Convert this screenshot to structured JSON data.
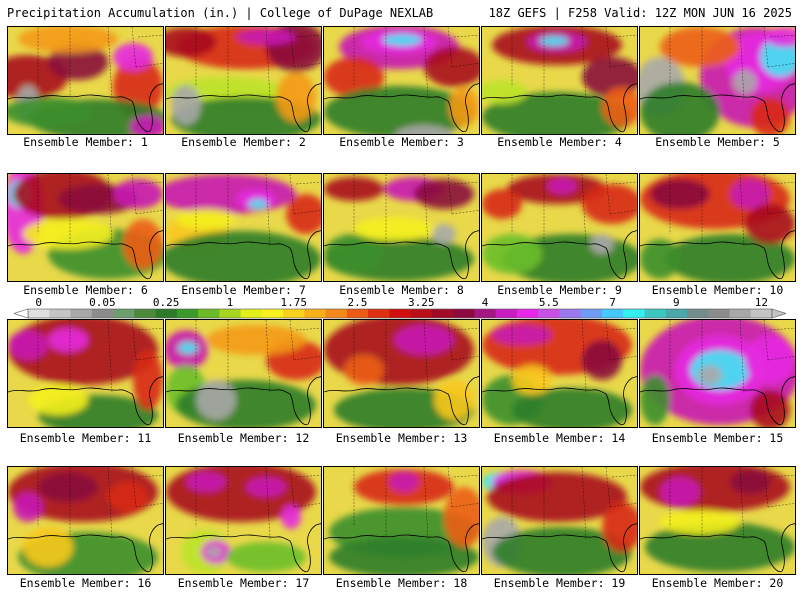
{
  "header": {
    "left": "Precipitation Accumulation (in.) | College of DuPage NEXLAB",
    "right": "18Z GEFS | F258 Valid: 12Z MON JUN 16 2025"
  },
  "members": [
    {
      "label": "Ensemble Member: 1"
    },
    {
      "label": "Ensemble Member: 2"
    },
    {
      "label": "Ensemble Member: 3"
    },
    {
      "label": "Ensemble Member: 4"
    },
    {
      "label": "Ensemble Member: 5"
    },
    {
      "label": "Ensemble Member: 6"
    },
    {
      "label": "Ensemble Member: 7"
    },
    {
      "label": "Ensemble Member: 8"
    },
    {
      "label": "Ensemble Member: 9"
    },
    {
      "label": "Ensemble Member: 10"
    },
    {
      "label": "Ensemble Member: 11"
    },
    {
      "label": "Ensemble Member: 12"
    },
    {
      "label": "Ensemble Member: 13"
    },
    {
      "label": "Ensemble Member: 14"
    },
    {
      "label": "Ensemble Member: 15"
    },
    {
      "label": "Ensemble Member: 16"
    },
    {
      "label": "Ensemble Member: 17"
    },
    {
      "label": "Ensemble Member: 18"
    },
    {
      "label": "Ensemble Member: 19"
    },
    {
      "label": "Ensemble Member: 20"
    }
  ],
  "colorbar": {
    "tick_labels": [
      "0",
      "0.05",
      "0.25",
      "1",
      "1.75",
      "2.5",
      "3.25",
      "4",
      "5.5",
      "7",
      "9",
      "12"
    ],
    "colors": [
      "#e0e0e0",
      "#c4c4c4",
      "#a8a8a8",
      "#8c8c8c",
      "#6e9e6e",
      "#4e8a3c",
      "#2e7a2a",
      "#3a9a2a",
      "#6cba28",
      "#a8d422",
      "#e4ee1a",
      "#f8f020",
      "#f8d21e",
      "#f8b01a",
      "#f48818",
      "#ec5a16",
      "#e03012",
      "#d01010",
      "#b80e18",
      "#a00c28",
      "#8c0a40",
      "#a21880",
      "#c81ec0",
      "#e628e6",
      "#c850e6",
      "#9a78ee",
      "#6e9cf4",
      "#46c8fa",
      "#34eef0",
      "#3cc8c0",
      "#4aa8a8",
      "#748c8c",
      "#8c8c8c",
      "#a8a8a8",
      "#c4c4c4"
    ],
    "tick_slots": [
      0,
      3,
      6,
      9,
      12,
      15,
      18,
      21,
      24,
      27,
      30,
      34
    ]
  },
  "map": {
    "palette": [
      "#2e7d2a",
      "#3c8f2c",
      "#6cbf2a",
      "#bde32a",
      "#f4f01e",
      "#f8c81c",
      "#f49a18",
      "#ec5e16",
      "#d82a14",
      "#a80c1c",
      "#8a0a3c",
      "#c81ab4",
      "#e62ae0",
      "#40e6f2",
      "#a8a8a8"
    ],
    "background_color": "#e8d84a",
    "outline_color": "#000000",
    "panels": [
      {
        "member": 1,
        "blobs": [
          [
            20,
            50,
            40,
            22,
            9
          ],
          [
            70,
            35,
            30,
            18,
            10
          ],
          [
            60,
            12,
            50,
            14,
            6
          ],
          [
            130,
            60,
            25,
            30,
            8
          ],
          [
            20,
            78,
            12,
            20,
            14
          ],
          [
            90,
            92,
            70,
            20,
            0
          ],
          [
            40,
            85,
            45,
            15,
            1
          ],
          [
            140,
            100,
            18,
            12,
            11
          ],
          [
            125,
            30,
            20,
            14,
            12
          ]
        ]
      },
      {
        "member": 2,
        "blobs": [
          [
            80,
            20,
            70,
            22,
            8
          ],
          [
            20,
            15,
            30,
            15,
            9
          ],
          [
            130,
            20,
            30,
            25,
            10
          ],
          [
            60,
            65,
            60,
            15,
            3
          ],
          [
            80,
            92,
            75,
            22,
            0
          ],
          [
            20,
            78,
            15,
            20,
            14
          ],
          [
            130,
            70,
            20,
            25,
            6
          ],
          [
            100,
            10,
            30,
            8,
            11
          ]
        ]
      },
      {
        "member": 3,
        "blobs": [
          [
            75,
            20,
            60,
            22,
            11
          ],
          [
            75,
            15,
            38,
            12,
            12
          ],
          [
            78,
            13,
            20,
            6,
            13
          ],
          [
            30,
            50,
            30,
            20,
            8
          ],
          [
            130,
            40,
            30,
            20,
            9
          ],
          [
            75,
            85,
            75,
            26,
            0
          ],
          [
            100,
            110,
            30,
            12,
            14
          ],
          [
            140,
            80,
            15,
            20,
            6
          ]
        ]
      },
      {
        "member": 4,
        "blobs": [
          [
            75,
            18,
            65,
            20,
            9
          ],
          [
            75,
            15,
            30,
            10,
            11
          ],
          [
            72,
            14,
            15,
            5,
            13
          ],
          [
            130,
            50,
            30,
            20,
            10
          ],
          [
            75,
            90,
            75,
            25,
            0
          ],
          [
            20,
            65,
            25,
            12,
            3
          ],
          [
            140,
            80,
            20,
            20,
            7
          ]
        ]
      },
      {
        "member": 5,
        "blobs": [
          [
            115,
            50,
            55,
            50,
            11
          ],
          [
            120,
            35,
            35,
            30,
            12
          ],
          [
            105,
            55,
            12,
            12,
            14
          ],
          [
            20,
            60,
            25,
            30,
            14
          ],
          [
            40,
            85,
            40,
            30,
            0
          ],
          [
            60,
            20,
            40,
            20,
            7
          ],
          [
            140,
            30,
            20,
            20,
            13
          ],
          [
            130,
            90,
            20,
            20,
            8
          ],
          [
            145,
            10,
            20,
            10,
            12
          ]
        ]
      },
      {
        "member": 6,
        "blobs": [
          [
            15,
            35,
            20,
            45,
            12
          ],
          [
            12,
            20,
            12,
            14,
            13
          ],
          [
            55,
            20,
            50,
            25,
            9
          ],
          [
            90,
            25,
            40,
            15,
            10
          ],
          [
            100,
            80,
            60,
            25,
            1
          ],
          [
            60,
            60,
            45,
            15,
            4
          ],
          [
            135,
            70,
            20,
            25,
            7
          ],
          [
            130,
            20,
            25,
            15,
            11
          ]
        ]
      },
      {
        "member": 7,
        "blobs": [
          [
            60,
            20,
            70,
            20,
            11
          ],
          [
            90,
            25,
            20,
            10,
            12
          ],
          [
            92,
            30,
            10,
            5,
            13
          ],
          [
            30,
            60,
            30,
            20,
            5
          ],
          [
            75,
            85,
            80,
            28,
            0
          ],
          [
            140,
            40,
            20,
            20,
            8
          ],
          [
            40,
            45,
            30,
            10,
            4
          ]
        ]
      },
      {
        "member": 8,
        "blobs": [
          [
            90,
            15,
            30,
            12,
            11
          ],
          [
            30,
            15,
            30,
            12,
            9
          ],
          [
            120,
            20,
            30,
            15,
            10
          ],
          [
            75,
            85,
            75,
            22,
            0
          ],
          [
            120,
            60,
            12,
            10,
            14
          ],
          [
            30,
            80,
            30,
            20,
            1
          ],
          [
            70,
            55,
            40,
            12,
            4
          ]
        ]
      },
      {
        "member": 9,
        "blobs": [
          [
            75,
            15,
            50,
            15,
            9
          ],
          [
            80,
            12,
            15,
            8,
            11
          ],
          [
            20,
            30,
            20,
            15,
            8
          ],
          [
            130,
            30,
            30,
            20,
            8
          ],
          [
            90,
            85,
            70,
            25,
            0
          ],
          [
            30,
            80,
            30,
            20,
            2
          ],
          [
            120,
            70,
            12,
            10,
            14
          ]
        ]
      },
      {
        "member": 10,
        "blobs": [
          [
            75,
            25,
            75,
            30,
            8
          ],
          [
            40,
            20,
            30,
            15,
            10
          ],
          [
            110,
            20,
            20,
            15,
            11
          ],
          [
            90,
            85,
            65,
            25,
            0
          ],
          [
            20,
            85,
            20,
            20,
            1
          ],
          [
            130,
            50,
            25,
            20,
            9
          ]
        ]
      },
      {
        "member": 11,
        "blobs": [
          [
            75,
            30,
            75,
            35,
            9
          ],
          [
            20,
            25,
            20,
            15,
            11
          ],
          [
            60,
            20,
            20,
            12,
            12
          ],
          [
            90,
            95,
            60,
            20,
            0
          ],
          [
            50,
            80,
            30,
            15,
            4
          ],
          [
            140,
            60,
            15,
            30,
            8
          ]
        ]
      },
      {
        "member": 12,
        "blobs": [
          [
            20,
            30,
            22,
            20,
            11
          ],
          [
            22,
            28,
            10,
            6,
            13
          ],
          [
            20,
            70,
            20,
            25,
            2
          ],
          [
            80,
            85,
            70,
            25,
            0
          ],
          [
            50,
            80,
            20,
            20,
            14
          ],
          [
            130,
            40,
            30,
            20,
            8
          ],
          [
            90,
            20,
            50,
            15,
            6
          ]
        ]
      },
      {
        "member": 13,
        "blobs": [
          [
            75,
            30,
            75,
            35,
            9
          ],
          [
            100,
            20,
            30,
            15,
            11
          ],
          [
            40,
            50,
            20,
            15,
            7
          ],
          [
            80,
            90,
            70,
            22,
            0
          ],
          [
            130,
            80,
            20,
            20,
            5
          ]
        ]
      },
      {
        "member": 14,
        "blobs": [
          [
            75,
            25,
            75,
            30,
            8
          ],
          [
            40,
            15,
            30,
            10,
            11
          ],
          [
            120,
            40,
            20,
            20,
            10
          ],
          [
            30,
            80,
            30,
            25,
            1
          ],
          [
            90,
            90,
            60,
            22,
            0
          ],
          [
            50,
            60,
            20,
            15,
            5
          ]
        ]
      },
      {
        "member": 15,
        "blobs": [
          [
            80,
            50,
            80,
            55,
            11
          ],
          [
            80,
            50,
            45,
            35,
            12
          ],
          [
            80,
            50,
            30,
            20,
            13
          ],
          [
            70,
            55,
            12,
            10,
            14
          ],
          [
            130,
            40,
            25,
            25,
            12
          ],
          [
            15,
            80,
            15,
            25,
            1
          ],
          [
            130,
            90,
            20,
            20,
            9
          ]
        ]
      },
      {
        "member": 16,
        "blobs": [
          [
            75,
            25,
            75,
            30,
            9
          ],
          [
            60,
            20,
            30,
            15,
            10
          ],
          [
            20,
            40,
            15,
            15,
            11
          ],
          [
            120,
            30,
            20,
            15,
            8
          ],
          [
            80,
            90,
            70,
            25,
            1
          ],
          [
            40,
            80,
            25,
            20,
            5
          ]
        ]
      },
      {
        "member": 17,
        "blobs": [
          [
            75,
            25,
            75,
            30,
            9
          ],
          [
            40,
            15,
            20,
            10,
            11
          ],
          [
            100,
            20,
            20,
            10,
            11
          ],
          [
            40,
            85,
            25,
            22,
            3
          ],
          [
            50,
            85,
            15,
            12,
            12
          ],
          [
            48,
            85,
            8,
            6,
            14
          ],
          [
            125,
            50,
            10,
            12,
            12
          ],
          [
            100,
            90,
            40,
            15,
            2
          ]
        ]
      },
      {
        "member": 18,
        "blobs": [
          [
            80,
            20,
            50,
            18,
            8
          ],
          [
            80,
            15,
            15,
            10,
            11
          ],
          [
            80,
            65,
            75,
            25,
            1
          ],
          [
            80,
            90,
            75,
            20,
            0
          ],
          [
            140,
            50,
            20,
            30,
            7
          ]
        ]
      },
      {
        "member": 19,
        "blobs": [
          [
            20,
            15,
            20,
            10,
            13
          ],
          [
            40,
            15,
            30,
            12,
            12
          ],
          [
            75,
            30,
            70,
            25,
            9
          ],
          [
            20,
            75,
            20,
            25,
            14
          ],
          [
            80,
            85,
            70,
            25,
            0
          ],
          [
            140,
            60,
            20,
            25,
            8
          ]
        ]
      },
      {
        "member": 20,
        "blobs": [
          [
            75,
            20,
            75,
            25,
            9
          ],
          [
            40,
            25,
            20,
            15,
            11
          ],
          [
            110,
            15,
            20,
            12,
            10
          ],
          [
            80,
            80,
            75,
            25,
            0
          ],
          [
            60,
            55,
            40,
            12,
            4
          ]
        ]
      }
    ]
  }
}
